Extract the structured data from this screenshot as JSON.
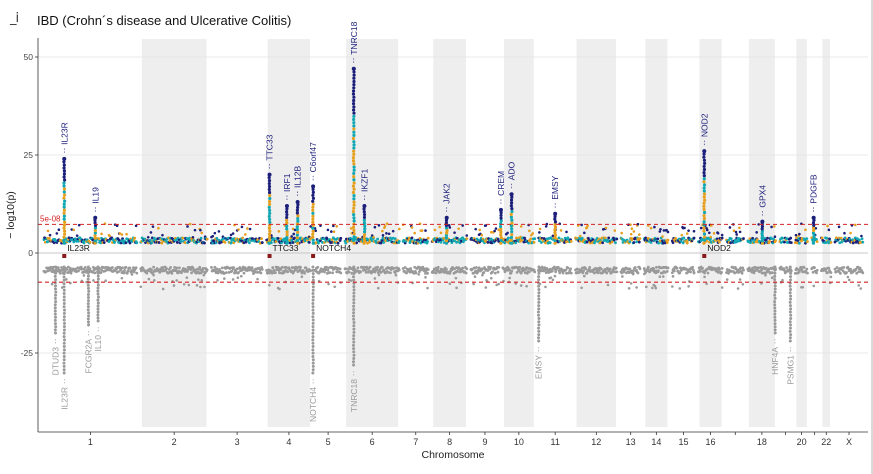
{
  "header": {
    "menu_glyph": "_i",
    "title": "IBD (Crohn´s disease and Ulcerative Colitis)"
  },
  "colors": {
    "navy": "#1c1f7a",
    "teal": "#12a8b3",
    "orange": "#e6a020",
    "gray": "#9a9a9a",
    "band": "#eeeeee",
    "threshold": "#d62222",
    "gene_marker": "#8b1a1a"
  },
  "chart_data": {
    "type": "scatter",
    "subtype": "miami_plot",
    "xlabel": "Chromosome",
    "ylabel": "− log10(p)",
    "ylim": [
      -33,
      55
    ],
    "y_ticks": [
      {
        "value": 50,
        "label": "50"
      },
      {
        "value": 25,
        "label": "25"
      },
      {
        "value": 0,
        "label": "0"
      },
      {
        "value": -25,
        "label": "-25"
      }
    ],
    "threshold": {
      "label": "5e-08",
      "value": 7.3
    },
    "chromosomes": [
      "1",
      "2",
      "3",
      "4",
      "5",
      "6",
      "7",
      "8",
      "9",
      "10",
      "11",
      "12",
      "13",
      "14",
      "15",
      "16",
      "17",
      "18",
      "19",
      "20",
      "21",
      "22",
      "X"
    ],
    "chromosome_tick_labels": [
      "1",
      "2",
      "3",
      "4",
      "5",
      "6",
      "7",
      "8",
      "9",
      "10",
      "11",
      "12",
      "13",
      "14",
      "15",
      "16",
      "",
      "18",
      "",
      "20",
      "",
      "22",
      "X"
    ],
    "chromosome_range_x": [
      [
        0,
        100
      ],
      [
        100,
        173
      ],
      [
        173,
        230
      ],
      [
        230,
        280
      ],
      [
        280,
        311
      ],
      [
        311,
        371
      ],
      [
        371,
        401
      ],
      [
        401,
        441
      ],
      [
        441,
        474
      ],
      [
        474,
        511
      ],
      [
        511,
        549
      ],
      [
        549,
        596
      ],
      [
        596,
        620
      ],
      [
        620,
        649
      ],
      [
        649,
        676
      ],
      [
        676,
        705
      ],
      [
        705,
        727
      ],
      [
        727,
        760
      ],
      [
        760,
        776
      ],
      [
        776,
        793
      ],
      [
        793,
        803
      ],
      [
        803,
        817
      ],
      [
        817,
        850
      ]
    ],
    "top_series": [
      {
        "name": "association",
        "peaks": [
          {
            "x": 23,
            "y": 24,
            "gene": "IL23R"
          },
          {
            "x": 55,
            "y": 9,
            "gene": "IL19"
          },
          {
            "x": 235,
            "y": 20,
            "gene": "TTC33"
          },
          {
            "x": 253,
            "y": 12,
            "gene": "IRF1"
          },
          {
            "x": 264,
            "y": 13,
            "gene": "IL12B"
          },
          {
            "x": 280,
            "y": 17,
            "gene": "C6orf47"
          },
          {
            "x": 322,
            "y": 47,
            "gene": "TNRC18"
          },
          {
            "x": 333,
            "y": 12,
            "gene": "IKZF1"
          },
          {
            "x": 418,
            "y": 9,
            "gene": "JAK2"
          },
          {
            "x": 474,
            "y": 11,
            "gene": "CREM"
          },
          {
            "x": 485,
            "y": 15,
            "gene": "ADO"
          },
          {
            "x": 530,
            "y": 10,
            "gene": "EMSY"
          },
          {
            "x": 684,
            "y": 26,
            "gene": "NOD2"
          },
          {
            "x": 744,
            "y": 8,
            "gene": "GPX4"
          },
          {
            "x": 797,
            "y": 9,
            "gene": "PDGFB"
          }
        ]
      }
    ],
    "bottom_series": [
      {
        "name": "association (mirrored)",
        "peaks": [
          {
            "x": 23,
            "y": -30,
            "gene": "IL23R"
          },
          {
            "x": 14,
            "y": -20,
            "gene": "DTUD3"
          },
          {
            "x": 48,
            "y": -18,
            "gene": "FCGR2A"
          },
          {
            "x": 58,
            "y": -17,
            "gene": "IL10"
          },
          {
            "x": 280,
            "y": -30,
            "gene": "NOTCH4"
          },
          {
            "x": 322,
            "y": -28,
            "gene": "TNRC18"
          },
          {
            "x": 513,
            "y": -22,
            "gene": "EMSY"
          },
          {
            "x": 757,
            "y": -20,
            "gene": "HNF4A"
          },
          {
            "x": 773,
            "y": -22,
            "gene": "PSMG1"
          }
        ]
      }
    ],
    "marker_genes": [
      {
        "x": 23,
        "label": "IL23R"
      },
      {
        "x": 235,
        "label": "TTC33"
      },
      {
        "x": 280,
        "label": "NOTCH4"
      },
      {
        "x": 684,
        "label": "NOD2"
      }
    ],
    "baseline_top": 2.5,
    "baseline_bottom": -3.5
  }
}
